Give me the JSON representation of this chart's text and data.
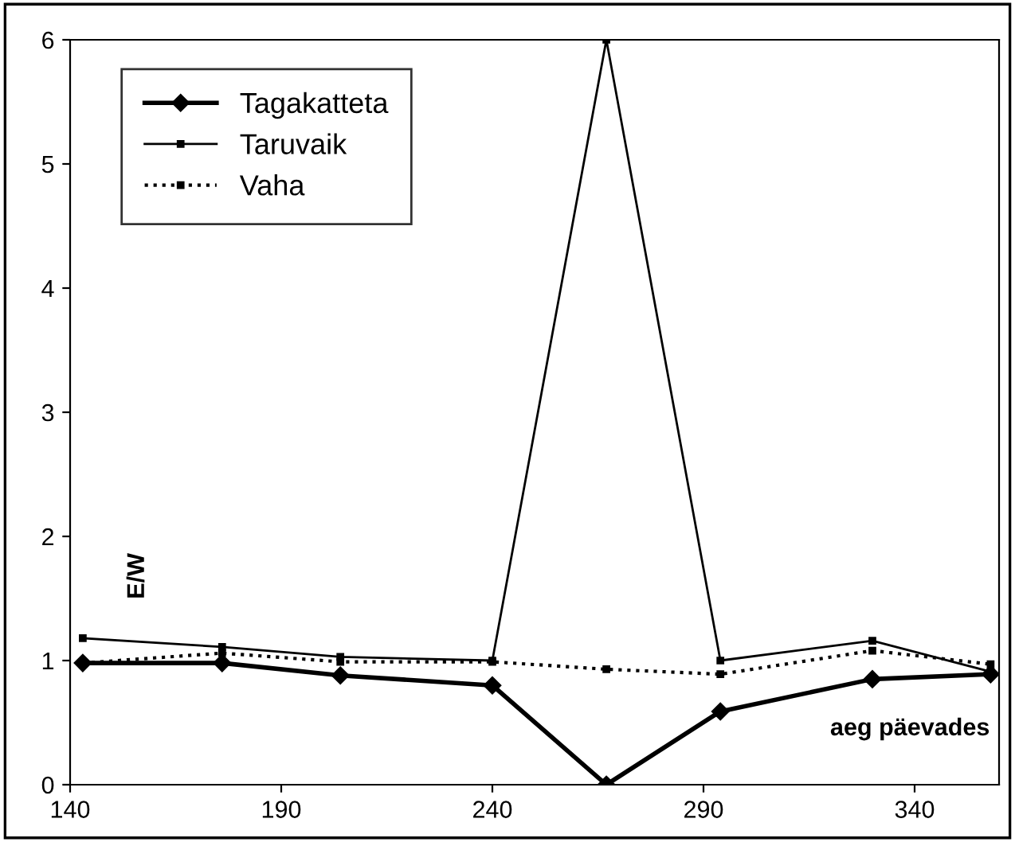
{
  "chart_data": {
    "type": "line",
    "xlabel": "aeg päevades",
    "ylabel": "E/W",
    "x": [
      143,
      176,
      204,
      240,
      267,
      294,
      330,
      358
    ],
    "series": [
      {
        "name": "Tagakatteta",
        "color": "#000000",
        "marker": "diamond",
        "line_style": "solid",
        "values": [
          0.98,
          0.98,
          0.88,
          0.8,
          0,
          0.59,
          0.85,
          0.89
        ]
      },
      {
        "name": "Taruvaik",
        "color": "#000000",
        "marker": "square",
        "line_style": "solid",
        "values": [
          1.18,
          1.11,
          1.03,
          1.0,
          6.0,
          1.0,
          1.16,
          0.91
        ]
      },
      {
        "name": "Vaha",
        "color": "#000000",
        "marker": "square",
        "line_style": "dotted",
        "values": [
          0.98,
          1.06,
          0.99,
          0.99,
          0.93,
          0.89,
          1.08,
          0.97
        ]
      }
    ],
    "xlim": [
      140,
      360
    ],
    "ylim": [
      0,
      6
    ],
    "xticks": [
      140,
      190,
      240,
      290,
      340
    ],
    "yticks": [
      0,
      1,
      2,
      3,
      4,
      5,
      6
    ],
    "grid": false,
    "legend": "top left"
  }
}
